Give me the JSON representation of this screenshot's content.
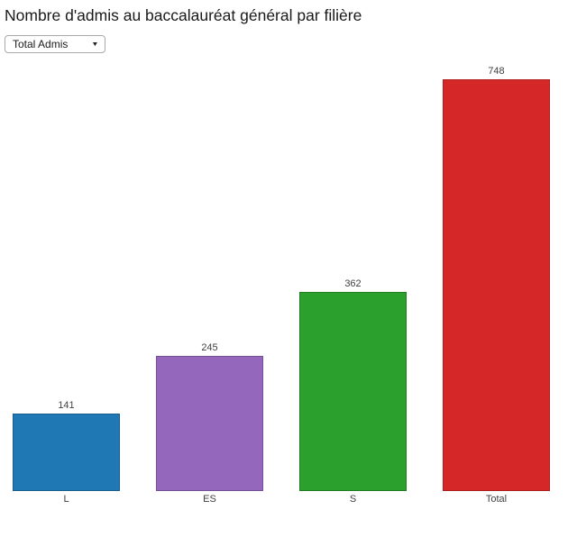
{
  "page": {
    "title": "Nombre d'admis au baccalauréat général par filière"
  },
  "controls": {
    "metric_select": {
      "value": "Total Admis",
      "arrow_icon": "▼"
    }
  },
  "chart_data": {
    "type": "bar",
    "title": "Nombre d'admis au baccalauréat général par filière",
    "categories": [
      "L",
      "ES",
      "S",
      "Total"
    ],
    "values": [
      141,
      245,
      362,
      748
    ],
    "bar_colors": [
      "#1f77b4",
      "#9467bd",
      "#2ca02c",
      "#d62728"
    ],
    "bar_border_colors": [
      "#185d8d",
      "#764f99",
      "#227a22",
      "#ab1f20"
    ],
    "xlabel": "",
    "ylabel": "",
    "ylim": [
      0,
      748
    ],
    "grid": false,
    "legend": false,
    "value_labels": true,
    "value_label_color": "#404040",
    "category_label_color": "#404040"
  }
}
